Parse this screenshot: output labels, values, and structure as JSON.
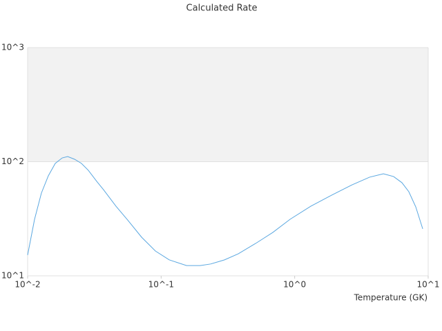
{
  "chart_data": {
    "type": "line",
    "title": "Calculated Rate",
    "x_label": "Temperature (GK)",
    "x": [
      0.01,
      0.01127,
      0.01268,
      0.01429,
      0.0161,
      0.01815,
      0.01995,
      0.0225,
      0.0253,
      0.0285,
      0.0329,
      0.037,
      0.0459,
      0.0562,
      0.0714,
      0.0906,
      0.1149,
      0.155,
      0.196,
      0.235,
      0.298,
      0.378,
      0.509,
      0.686,
      0.924,
      1.32,
      1.89,
      2.7,
      3.64,
      4.62,
      5.51,
      6.36,
      7.16,
      8.07,
      9.1
    ],
    "series": [
      {
        "color": "#5aa7e0",
        "values": [
          15.2,
          31.3,
          53.1,
          75.2,
          96.6,
          107.9,
          111,
          105,
          96.6,
          84,
          67.3,
          56.9,
          40.7,
          30.8,
          21.8,
          16.5,
          13.8,
          12.3,
          12.3,
          12.7,
          13.8,
          15.6,
          19.2,
          24.0,
          31.3,
          40.7,
          50.9,
          62.8,
          73.2,
          78.4,
          74.1,
          65.5,
          54.6,
          40.2,
          25.8
        ]
      }
    ],
    "x_log": true,
    "y_log": true,
    "xlim": [
      0.01,
      10
    ],
    "ylim": [
      10,
      1000
    ],
    "xticks": [
      {
        "value": 0.01,
        "label": "10^-2"
      },
      {
        "value": 0.1,
        "label": "10^-1"
      },
      {
        "value": 1,
        "label": "10^0"
      },
      {
        "value": 10,
        "label": "10^1"
      }
    ],
    "yticks": [
      {
        "value": 10,
        "label": "10^1"
      },
      {
        "value": 100,
        "label": "10^2"
      },
      {
        "value": 1000,
        "label": "10^3"
      }
    ],
    "grid": true,
    "plot_bands": [
      {
        "from": 100,
        "to": 1000,
        "color": "#f2f2f2"
      }
    ]
  }
}
